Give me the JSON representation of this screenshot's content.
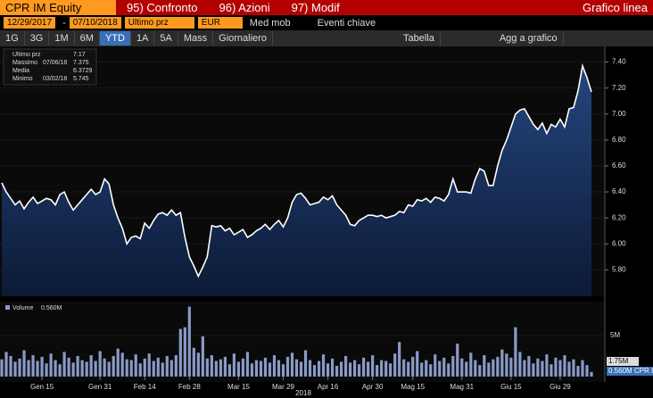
{
  "toolbar": {
    "security": "CPR IM Equity",
    "menu": [
      "95) Confronto",
      "96) Azioni",
      "97) Modif"
    ],
    "view": "Grafico linea",
    "start_date": "12/29/2017",
    "end_date": "07/10/2018",
    "field": "Ultimo prz",
    "currency": "EUR",
    "moving_average": "Med mob",
    "key_events": "Eventi chiave",
    "ranges": [
      "1G",
      "3G",
      "1M",
      "6M",
      "YTD",
      "1A",
      "5A",
      "Mass"
    ],
    "active_range": 4,
    "period": "Giornaliero",
    "table": "Tabella",
    "add": "Agg a grafico"
  },
  "chart_data": {
    "type": "line",
    "year_label": "2018",
    "categories": [
      null,
      null,
      null,
      null,
      null,
      null,
      null,
      null,
      null,
      "Gen 15",
      null,
      null,
      null,
      null,
      null,
      null,
      null,
      null,
      null,
      null,
      null,
      null,
      "Gen 31",
      null,
      null,
      null,
      null,
      null,
      null,
      null,
      null,
      null,
      "Feb 14",
      null,
      null,
      null,
      null,
      null,
      null,
      null,
      null,
      null,
      "Feb 28",
      null,
      null,
      null,
      null,
      null,
      null,
      null,
      null,
      null,
      null,
      "Mar 15",
      null,
      null,
      null,
      null,
      null,
      null,
      null,
      null,
      null,
      "Mar 29",
      null,
      null,
      null,
      null,
      null,
      null,
      null,
      null,
      null,
      "Apr 16",
      null,
      null,
      null,
      null,
      null,
      null,
      null,
      null,
      null,
      "Apr 30",
      null,
      null,
      null,
      null,
      null,
      null,
      null,
      null,
      "Mag 15",
      null,
      null,
      null,
      null,
      null,
      null,
      null,
      null,
      null,
      null,
      "Mag 31",
      null,
      null,
      null,
      null,
      null,
      null,
      null,
      null,
      null,
      null,
      "Giu 15",
      null,
      null,
      null,
      null,
      null,
      null,
      null,
      null,
      null,
      null,
      "Giu 29",
      null,
      null,
      null,
      null,
      null,
      null,
      null
    ],
    "series": [
      {
        "name": "Ultimo prz",
        "color": "#ffffff",
        "values": [
          6.47,
          6.4,
          6.35,
          6.3,
          6.33,
          6.27,
          6.32,
          6.36,
          6.31,
          6.33,
          6.35,
          6.34,
          6.3,
          6.38,
          6.4,
          6.32,
          6.26,
          6.3,
          6.34,
          6.38,
          6.42,
          6.38,
          6.4,
          6.5,
          6.46,
          6.3,
          6.2,
          6.12,
          6.0,
          6.05,
          6.06,
          6.04,
          6.16,
          6.12,
          6.18,
          6.23,
          6.24,
          6.22,
          6.26,
          6.22,
          6.24,
          6.05,
          5.9,
          5.83,
          5.75,
          5.82,
          5.9,
          6.14,
          6.13,
          6.14,
          6.1,
          6.12,
          6.07,
          6.09,
          6.11,
          6.05,
          6.07,
          6.1,
          6.12,
          6.15,
          6.11,
          6.15,
          6.18,
          6.13,
          6.2,
          6.32,
          6.38,
          6.39,
          6.35,
          6.3,
          6.31,
          6.32,
          6.36,
          6.34,
          6.37,
          6.3,
          6.26,
          6.22,
          6.15,
          6.14,
          6.18,
          6.2,
          6.22,
          6.22,
          6.21,
          6.22,
          6.2,
          6.21,
          6.22,
          6.25,
          6.24,
          6.3,
          6.29,
          6.34,
          6.33,
          6.35,
          6.32,
          6.36,
          6.35,
          6.33,
          6.38,
          6.5,
          6.4,
          6.4,
          6.4,
          6.39,
          6.5,
          6.58,
          6.56,
          6.45,
          6.45,
          6.6,
          6.72,
          6.8,
          6.9,
          7.0,
          7.03,
          7.04,
          6.98,
          6.92,
          6.88,
          6.93,
          6.85,
          6.92,
          6.9,
          6.96,
          6.9,
          7.04,
          7.05,
          7.18,
          7.37,
          7.28,
          7.17
        ]
      }
    ],
    "ylim": [
      5.61,
      7.5
    ],
    "yticks": [
      {
        "value": 5.8,
        "label": "5.80"
      },
      {
        "value": 6.0,
        "label": "6.00"
      },
      {
        "value": 6.2,
        "label": "6.20"
      },
      {
        "value": 6.4,
        "label": "6.40"
      },
      {
        "value": 6.6,
        "label": "6.60"
      },
      {
        "value": 6.8,
        "label": "6.80"
      },
      {
        "value": 7.0,
        "label": "7.00"
      },
      {
        "value": 7.2,
        "label": "7.20"
      },
      {
        "value": 7.4,
        "label": "7.40"
      }
    ],
    "grid": true,
    "legend": [
      {
        "name": "Ultimo prz",
        "value": 7.17
      },
      {
        "name": "Massimo",
        "date": "07/06/18",
        "value": 7.375
      },
      {
        "name": "Media",
        "value": 6.3729
      },
      {
        "name": "Minimo",
        "date": "03/02/18",
        "value": 5.745
      }
    ],
    "volume": {
      "name": "Volume",
      "legend_value": "0.560M",
      "color": "#8a9ac8",
      "values": [
        2.1,
        3.0,
        2.5,
        1.8,
        2.2,
        3.2,
        2.0,
        2.6,
        1.9,
        2.4,
        1.6,
        2.8,
        2.0,
        1.5,
        3.0,
        2.3,
        1.7,
        2.5,
        2.0,
        1.8,
        2.6,
        1.9,
        3.1,
        2.2,
        1.8,
        2.5,
        3.4,
        2.9,
        2.1,
        2.0,
        2.7,
        1.6,
        2.2,
        2.8,
        1.9,
        2.3,
        1.7,
        2.5,
        2.0,
        2.6,
        5.8,
        6.0,
        8.5,
        3.5,
        2.9,
        4.9,
        2.2,
        2.6,
        1.9,
        2.1,
        2.4,
        1.5,
        2.8,
        1.8,
        2.2,
        3.0,
        1.6,
        2.0,
        1.9,
        2.3,
        1.7,
        2.6,
        2.0,
        1.5,
        2.4,
        2.9,
        2.1,
        1.8,
        3.2,
        2.0,
        1.4,
        1.9,
        2.7,
        1.6,
        2.2,
        1.3,
        1.8,
        2.5,
        1.7,
        2.0,
        1.5,
        2.3,
        1.8,
        2.6,
        1.4,
        2.0,
        1.9,
        1.6,
        2.8,
        4.2,
        2.1,
        1.8,
        2.4,
        3.1,
        1.7,
        2.0,
        1.5,
        2.7,
        1.9,
        2.3,
        1.6,
        2.5,
        4.0,
        2.2,
        1.8,
        2.9,
        2.0,
        1.4,
        2.6,
        1.7,
        2.1,
        2.4,
        3.3,
        2.8,
        2.3,
        6.0,
        3.0,
        2.0,
        2.5,
        1.6,
        2.2,
        1.9,
        2.7,
        1.5,
        2.3,
        2.0,
        2.6,
        1.8,
        2.1,
        1.3,
        2.0,
        1.4,
        0.56
      ],
      "ylim": [
        0,
        8.9
      ],
      "yticks": [
        {
          "value": 5,
          "label": "5M"
        }
      ],
      "tags": [
        "1.75M",
        "0.560M CPR IM"
      ]
    }
  }
}
